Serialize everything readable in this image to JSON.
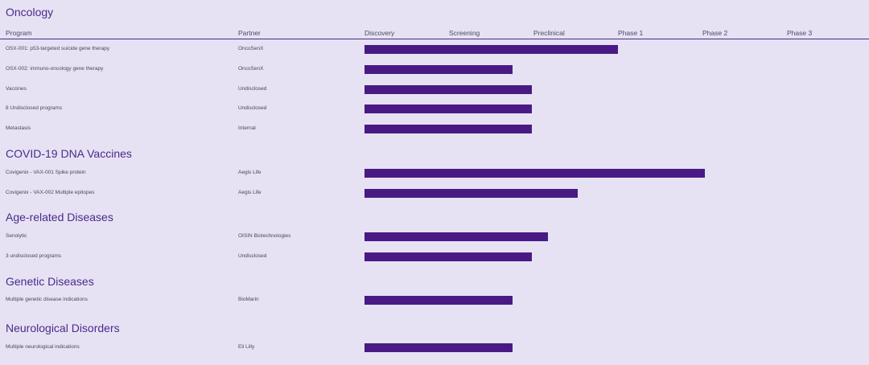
{
  "headers": {
    "program": "Program",
    "partner": "Partner",
    "stages": [
      "Discovery",
      "Screening",
      "Preclinical",
      "Phase 1",
      "Phase 2",
      "Phase 3"
    ]
  },
  "colors": {
    "background": "#e6e2f4",
    "bar": "#4a1a84",
    "title": "#4b2a8a"
  },
  "chart_data": {
    "type": "bar",
    "orientation": "horizontal",
    "stage_scale": [
      "Discovery",
      "Screening",
      "Preclinical",
      "Phase 1",
      "Phase 2",
      "Phase 3"
    ],
    "xlim": [
      0,
      6
    ],
    "sections": [
      {
        "title": "Oncology",
        "rows": [
          {
            "program": "OSX-001: p53-targeted suicide gene therapy",
            "partner": "OncoSenX",
            "progress": 3.0
          },
          {
            "program": "OSX-002: immuno-oncology gene therapy",
            "partner": "OncoSenX",
            "progress": 1.75
          },
          {
            "program": "Vaccines",
            "partner": "Undisclosed",
            "progress": 1.98
          },
          {
            "program": "8 Undisclosed programs",
            "partner": "Undisclosed",
            "progress": 1.98
          },
          {
            "program": "Metastasis",
            "partner": "Internal",
            "progress": 1.98
          }
        ]
      },
      {
        "title": "COVID-19 DNA Vaccines",
        "rows": [
          {
            "program": "Covigenix - VAX-001 Spike protein",
            "partner": "Aegis Life",
            "progress": 4.03
          },
          {
            "program": "Covigenix - VAX-002 Multiple epitopes",
            "partner": "Aegis Life",
            "progress": 2.52
          }
        ]
      },
      {
        "title": "Age-related Diseases",
        "rows": [
          {
            "program": "Senolytic",
            "partner": "OISIN Biotechnologies",
            "progress": 2.17
          },
          {
            "program": "3 undisclosed programs",
            "partner": "Undisclosed",
            "progress": 1.98
          }
        ]
      },
      {
        "title": "Genetic Diseases",
        "rows": [
          {
            "program": "Multiple genetic disease indications",
            "partner": "BioMarin",
            "progress": 1.75
          }
        ]
      },
      {
        "title": "Neurological Disorders",
        "rows": [
          {
            "program": "Multiple neurological indications",
            "partner": "Eli Lilly",
            "progress": 1.75
          }
        ]
      }
    ]
  }
}
